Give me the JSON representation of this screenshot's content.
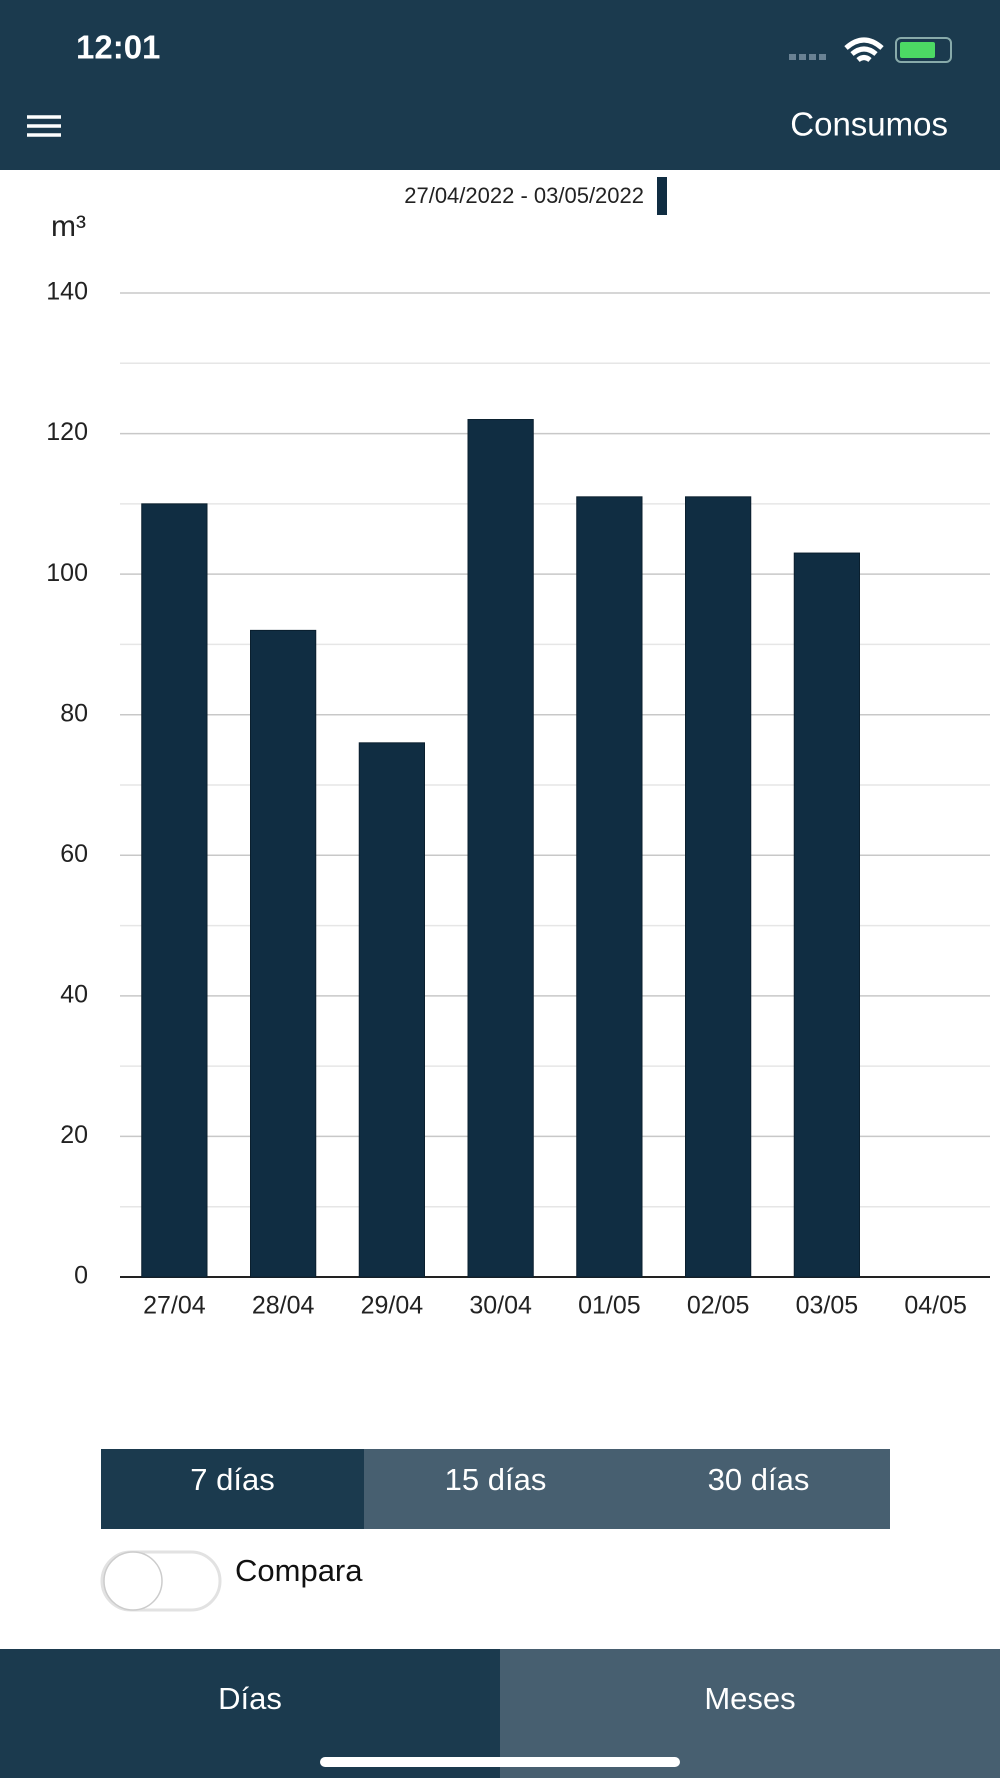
{
  "status_bar": {
    "time": "12:01"
  },
  "header": {
    "title": "Consumos"
  },
  "chart_data": {
    "type": "bar",
    "y_label": "m³",
    "categories": [
      "27/04",
      "28/04",
      "29/04",
      "30/04",
      "01/05",
      "02/05",
      "03/05",
      "04/05"
    ],
    "series": [
      {
        "name": "27/04/2022 - 03/05/2022",
        "color": "#102d42",
        "values": [
          110,
          92,
          76,
          122,
          111,
          111,
          103,
          null
        ]
      }
    ],
    "ylim": [
      0,
      140
    ],
    "yticks": [
      0,
      20,
      40,
      60,
      80,
      100,
      120,
      140
    ],
    "minor_yticks": [
      10,
      30,
      50,
      70,
      90,
      110,
      130
    ],
    "grid": true,
    "legend": "top"
  },
  "range_selector": {
    "options": [
      "7 días",
      "15 días",
      "30 días"
    ],
    "selected": 0
  },
  "compare_toggle": {
    "label": "Compara"
  },
  "tabs": {
    "items": [
      "Días",
      "Meses"
    ],
    "selected": 0
  }
}
